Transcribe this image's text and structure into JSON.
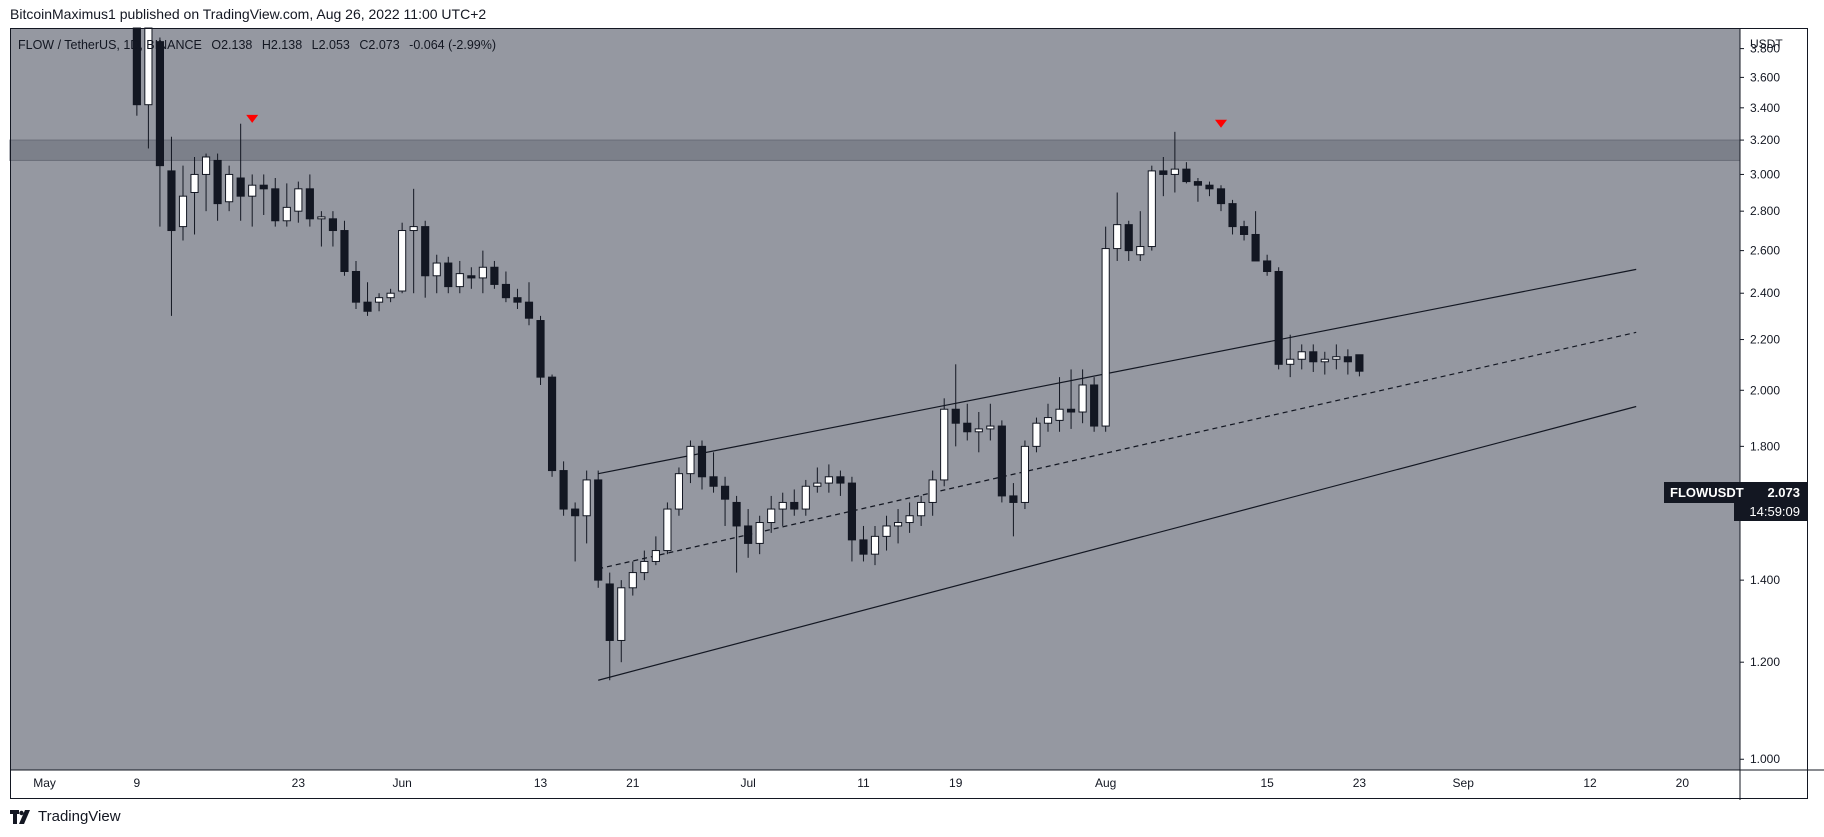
{
  "header": {
    "published_text": "BitcoinMaximus1 published on TradingView.com, Aug 26, 2022 11:00 UTC+2"
  },
  "footer": {
    "logo_text": "TradingView",
    "logo_icon": "tradingview-logo-icon"
  },
  "legend": {
    "symbol": "FLOW / TetherUS, 1D, BINANCE",
    "o_label": "O",
    "o_value": "2.138",
    "h_label": "H",
    "h_value": "2.138",
    "l_label": "L",
    "l_value": "2.053",
    "c_label": "C",
    "c_value": "2.073",
    "change": "-0.064 (-2.99%)"
  },
  "price_tag": {
    "name": "FLOWUSDT",
    "price": "2.073",
    "countdown": "14:59:09"
  },
  "colors": {
    "background": "#ffffff",
    "plot_bg": "#9598a1",
    "up_candle": "#ffffff",
    "down_candle": "#131722",
    "wick": "#131722",
    "resistance_zone": "#787b86",
    "marker": "#ff0000"
  },
  "chart_data": {
    "type": "candlestick",
    "symbol": "FLOW / TetherUS",
    "interval": "1D",
    "exchange": "BINANCE",
    "currency": "USDT",
    "y_scale": "log",
    "ylim": [
      0.98,
      3.95
    ],
    "y_ticks": [
      3.8,
      3.6,
      3.4,
      3.2,
      3.0,
      2.8,
      2.6,
      2.4,
      2.2,
      2.0,
      1.8,
      1.6,
      1.4,
      1.2,
      1.0
    ],
    "y_tick_labels": [
      "3.800",
      "3.600",
      "3.400",
      "3.200",
      "3.000",
      "2.800",
      "2.600",
      "2.400",
      "2.200",
      "2.000",
      "1.800",
      "1.600",
      "1.400",
      "1.200",
      "1.000"
    ],
    "x_range": [
      "2022-04-28",
      "2022-09-25"
    ],
    "x_ticks": [
      {
        "date": "2022-05-01",
        "label": "May"
      },
      {
        "date": "2022-05-09",
        "label": "9"
      },
      {
        "date": "2022-05-23",
        "label": "23"
      },
      {
        "date": "2022-06-01",
        "label": "Jun"
      },
      {
        "date": "2022-06-13",
        "label": "13"
      },
      {
        "date": "2022-06-21",
        "label": "21"
      },
      {
        "date": "2022-07-01",
        "label": "Jul"
      },
      {
        "date": "2022-07-11",
        "label": "11"
      },
      {
        "date": "2022-07-19",
        "label": "19"
      },
      {
        "date": "2022-08-01",
        "label": "Aug"
      },
      {
        "date": "2022-08-15",
        "label": "15"
      },
      {
        "date": "2022-08-23",
        "label": "23"
      },
      {
        "date": "2022-09-01",
        "label": "Sep"
      },
      {
        "date": "2022-09-12",
        "label": "12"
      },
      {
        "date": "2022-09-20",
        "label": "20"
      }
    ],
    "first_candle_date": "2022-05-09",
    "candles": [
      [
        4.0,
        4.1,
        3.35,
        3.42
      ],
      [
        3.42,
        4.1,
        3.15,
        4.05
      ],
      [
        3.85,
        3.88,
        2.72,
        3.05
      ],
      [
        3.02,
        3.22,
        2.3,
        2.7
      ],
      [
        2.72,
        3.05,
        2.65,
        2.88
      ],
      [
        2.9,
        3.1,
        2.68,
        3.0
      ],
      [
        3.0,
        3.12,
        2.8,
        3.1
      ],
      [
        3.08,
        3.12,
        2.75,
        2.84
      ],
      [
        2.85,
        3.05,
        2.8,
        3.0
      ],
      [
        2.98,
        3.3,
        2.75,
        2.88
      ],
      [
        2.88,
        3.0,
        2.72,
        2.94
      ],
      [
        2.94,
        3.0,
        2.78,
        2.92
      ],
      [
        2.92,
        2.98,
        2.72,
        2.75
      ],
      [
        2.75,
        2.95,
        2.72,
        2.82
      ],
      [
        2.8,
        2.96,
        2.74,
        2.92
      ],
      [
        2.92,
        3.0,
        2.72,
        2.76
      ],
      [
        2.76,
        2.8,
        2.62,
        2.77
      ],
      [
        2.76,
        2.8,
        2.62,
        2.7
      ],
      [
        2.7,
        2.75,
        2.48,
        2.5
      ],
      [
        2.5,
        2.55,
        2.33,
        2.36
      ],
      [
        2.36,
        2.45,
        2.3,
        2.32
      ],
      [
        2.36,
        2.4,
        2.32,
        2.38
      ],
      [
        2.38,
        2.42,
        2.36,
        2.4
      ],
      [
        2.41,
        2.74,
        2.4,
        2.7
      ],
      [
        2.7,
        2.92,
        2.4,
        2.72
      ],
      [
        2.72,
        2.75,
        2.38,
        2.48
      ],
      [
        2.48,
        2.58,
        2.4,
        2.54
      ],
      [
        2.54,
        2.57,
        2.4,
        2.43
      ],
      [
        2.43,
        2.55,
        2.4,
        2.49
      ],
      [
        2.48,
        2.52,
        2.42,
        2.47
      ],
      [
        2.47,
        2.6,
        2.4,
        2.52
      ],
      [
        2.52,
        2.55,
        2.42,
        2.44
      ],
      [
        2.44,
        2.5,
        2.36,
        2.38
      ],
      [
        2.38,
        2.42,
        2.33,
        2.36
      ],
      [
        2.36,
        2.45,
        2.26,
        2.29
      ],
      [
        2.28,
        2.3,
        2.02,
        2.05
      ],
      [
        2.05,
        2.06,
        1.7,
        1.72
      ],
      [
        1.72,
        1.75,
        1.58,
        1.6
      ],
      [
        1.6,
        1.62,
        1.45,
        1.58
      ],
      [
        1.58,
        1.72,
        1.5,
        1.69
      ],
      [
        1.69,
        1.72,
        1.38,
        1.4
      ],
      [
        1.39,
        1.42,
        1.16,
        1.25
      ],
      [
        1.25,
        1.4,
        1.2,
        1.38
      ],
      [
        1.38,
        1.45,
        1.36,
        1.42
      ],
      [
        1.42,
        1.48,
        1.4,
        1.45
      ],
      [
        1.45,
        1.52,
        1.44,
        1.48
      ],
      [
        1.48,
        1.62,
        1.47,
        1.6
      ],
      [
        1.6,
        1.73,
        1.58,
        1.71
      ],
      [
        1.71,
        1.82,
        1.68,
        1.8
      ],
      [
        1.8,
        1.82,
        1.66,
        1.7
      ],
      [
        1.7,
        1.78,
        1.65,
        1.67
      ],
      [
        1.67,
        1.7,
        1.55,
        1.63
      ],
      [
        1.62,
        1.64,
        1.42,
        1.55
      ],
      [
        1.55,
        1.6,
        1.46,
        1.5
      ],
      [
        1.5,
        1.58,
        1.47,
        1.56
      ],
      [
        1.56,
        1.64,
        1.53,
        1.6
      ],
      [
        1.6,
        1.65,
        1.55,
        1.62
      ],
      [
        1.62,
        1.66,
        1.58,
        1.6
      ],
      [
        1.6,
        1.69,
        1.58,
        1.67
      ],
      [
        1.67,
        1.73,
        1.65,
        1.68
      ],
      [
        1.68,
        1.74,
        1.65,
        1.7
      ],
      [
        1.7,
        1.72,
        1.64,
        1.68
      ],
      [
        1.68,
        1.7,
        1.45,
        1.51
      ],
      [
        1.51,
        1.55,
        1.45,
        1.47
      ],
      [
        1.47,
        1.55,
        1.44,
        1.52
      ],
      [
        1.52,
        1.58,
        1.48,
        1.55
      ],
      [
        1.55,
        1.6,
        1.5,
        1.56
      ],
      [
        1.56,
        1.62,
        1.53,
        1.58
      ],
      [
        1.58,
        1.64,
        1.55,
        1.62
      ],
      [
        1.62,
        1.72,
        1.58,
        1.69
      ],
      [
        1.69,
        1.97,
        1.67,
        1.93
      ],
      [
        1.93,
        2.1,
        1.8,
        1.88
      ],
      [
        1.88,
        1.95,
        1.82,
        1.85
      ],
      [
        1.85,
        1.92,
        1.78,
        1.86
      ],
      [
        1.86,
        1.95,
        1.82,
        1.87
      ],
      [
        1.87,
        1.89,
        1.62,
        1.64
      ],
      [
        1.64,
        1.68,
        1.52,
        1.62
      ],
      [
        1.62,
        1.82,
        1.6,
        1.8
      ],
      [
        1.8,
        1.9,
        1.78,
        1.88
      ],
      [
        1.88,
        1.95,
        1.85,
        1.9
      ],
      [
        1.89,
        2.05,
        1.85,
        1.93
      ],
      [
        1.93,
        2.08,
        1.86,
        1.92
      ],
      [
        1.92,
        2.08,
        1.88,
        2.02
      ],
      [
        2.02,
        2.05,
        1.85,
        1.87
      ],
      [
        1.87,
        2.72,
        1.85,
        2.61
      ],
      [
        2.61,
        2.9,
        2.55,
        2.73
      ],
      [
        2.73,
        2.75,
        2.55,
        2.6
      ],
      [
        2.58,
        2.8,
        2.55,
        2.62
      ],
      [
        2.62,
        3.05,
        2.6,
        3.02
      ],
      [
        3.02,
        3.1,
        2.88,
        3.0
      ],
      [
        3.0,
        3.25,
        2.9,
        3.03
      ],
      [
        3.03,
        3.07,
        2.95,
        2.96
      ],
      [
        2.96,
        2.98,
        2.85,
        2.94
      ],
      [
        2.94,
        2.96,
        2.88,
        2.92
      ],
      [
        2.92,
        2.94,
        2.8,
        2.84
      ],
      [
        2.84,
        2.86,
        2.68,
        2.72
      ],
      [
        2.72,
        2.75,
        2.65,
        2.68
      ],
      [
        2.68,
        2.8,
        2.55,
        2.55
      ],
      [
        2.55,
        2.58,
        2.48,
        2.5
      ],
      [
        2.5,
        2.52,
        2.08,
        2.1
      ],
      [
        2.1,
        2.22,
        2.05,
        2.12
      ],
      [
        2.12,
        2.18,
        2.08,
        2.15
      ],
      [
        2.15,
        2.18,
        2.07,
        2.11
      ],
      [
        2.11,
        2.15,
        2.06,
        2.12
      ],
      [
        2.12,
        2.18,
        2.08,
        2.13
      ],
      [
        2.13,
        2.16,
        2.06,
        2.11
      ],
      [
        2.138,
        2.138,
        2.053,
        2.073
      ]
    ],
    "trendlines": [
      {
        "name": "channel-upper",
        "style": "solid",
        "start": [
          "2022-06-18",
          1.71
        ],
        "end": [
          "2022-09-16",
          2.51
        ]
      },
      {
        "name": "channel-middle",
        "style": "dashed",
        "start": [
          "2022-06-18",
          1.43
        ],
        "end": [
          "2022-09-16",
          2.23
        ]
      },
      {
        "name": "channel-lower",
        "style": "solid",
        "start": [
          "2022-06-18",
          1.16
        ],
        "end": [
          "2022-09-16",
          1.94
        ]
      }
    ],
    "resistance_zone": [
      3.08,
      3.2
    ],
    "markers": [
      {
        "date": "2022-05-19",
        "value": 3.33,
        "shape": "triangle-down"
      },
      {
        "date": "2022-08-11",
        "value": 3.3,
        "shape": "triangle-down"
      }
    ],
    "last_price": 2.073
  }
}
